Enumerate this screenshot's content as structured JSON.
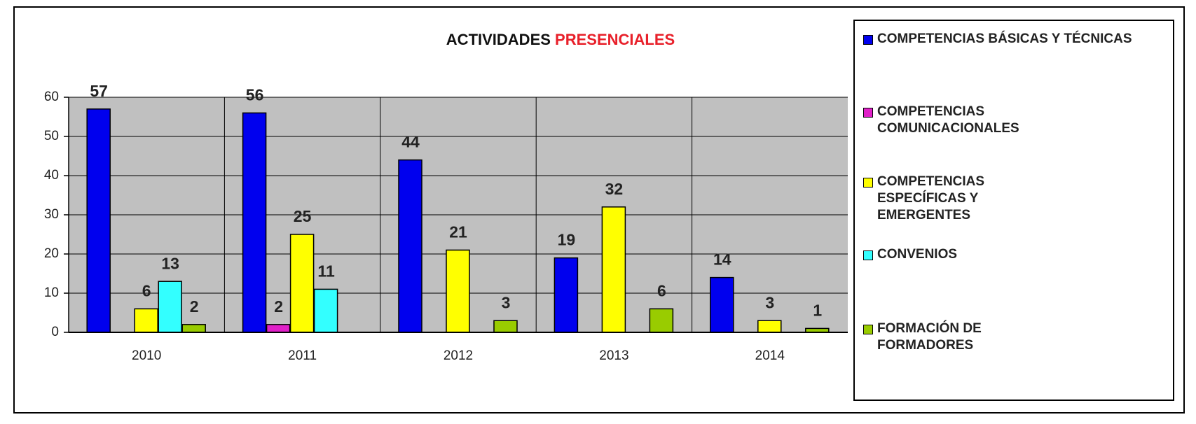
{
  "chart_data": {
    "type": "bar",
    "title": [
      "ACTIVIDADES",
      "PRESENCIALES"
    ],
    "title_colors": [
      "#111111",
      "#e8202a"
    ],
    "categories": [
      "2010",
      "2011",
      "2012",
      "2013",
      "2014"
    ],
    "series": [
      {
        "name": "COMPETENCIAS BÁSICAS Y TÉCNICAS",
        "color": "#0000ee",
        "values": [
          57,
          56,
          44,
          19,
          14
        ]
      },
      {
        "name": "COMPETENCIAS COMUNICACIONALES",
        "color": "#e020c8",
        "values": [
          null,
          2,
          null,
          null,
          null
        ]
      },
      {
        "name": "COMPETENCIAS ESPECÍFICAS Y EMERGENTES",
        "color": "#ffff00",
        "values": [
          6,
          25,
          21,
          32,
          3
        ]
      },
      {
        "name": "CONVENIOS",
        "color": "#33ffff",
        "values": [
          13,
          11,
          null,
          null,
          null
        ]
      },
      {
        "name": "FORMACIÓN DE FORMADORES",
        "color": "#99cc00",
        "values": [
          2,
          null,
          3,
          6,
          1
        ]
      }
    ],
    "ylim": [
      0,
      60
    ],
    "yticks": [
      0,
      10,
      20,
      30,
      40,
      50,
      60
    ],
    "grid": true,
    "legend": "right"
  }
}
